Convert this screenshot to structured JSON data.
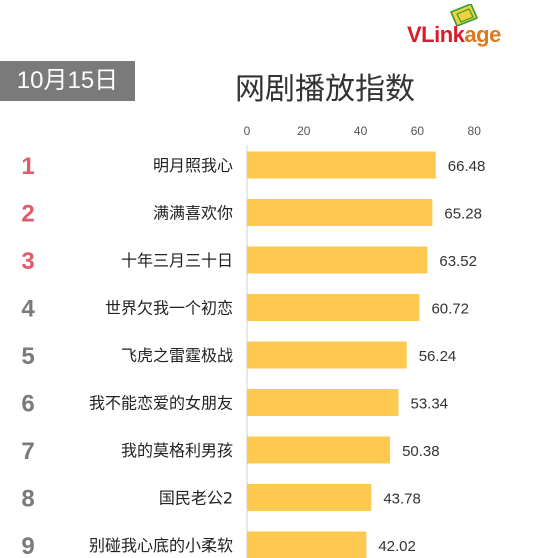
{
  "logo": {
    "part1": "VLink",
    "part2": "age"
  },
  "date_label": "10月15日",
  "colors": {
    "bar": "#ffc94f",
    "rank_top": "#e05a6a",
    "rank_other": "#7a7a7a",
    "date_bg": "#7a7a7a"
  },
  "chart_data": {
    "type": "bar",
    "orientation": "horizontal",
    "title": "网剧播放指数",
    "ranks": [
      "1",
      "2",
      "3",
      "4",
      "5",
      "6",
      "7",
      "8",
      "9"
    ],
    "categories": [
      "明月照我心",
      "满满喜欢你",
      "十年三月三十日",
      "世界欠我一个初恋",
      "飞虎之雷霆极战",
      "我不能恋爱的女朋友",
      "我的莫格利男孩",
      "国民老公2",
      "别碰我心底的小柔软"
    ],
    "values": [
      66.48,
      65.28,
      63.52,
      60.72,
      56.24,
      53.34,
      50.38,
      43.78,
      42.02
    ],
    "value_labels": [
      "66.48",
      "65.28",
      "63.52",
      "60.72",
      "56.24",
      "53.34",
      "50.38",
      "43.78",
      "42.02"
    ],
    "xticks": [
      "0",
      "20",
      "40",
      "60",
      "80"
    ],
    "xlim": [
      0,
      80
    ],
    "grid": false,
    "legend": "none"
  }
}
